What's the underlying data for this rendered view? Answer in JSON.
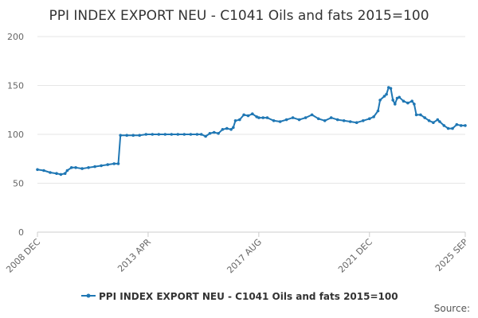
{
  "chart_data": {
    "type": "line",
    "title": "PPI INDEX EXPORT NEU - C1041 Oils and fats 2015=100",
    "xlabel": "",
    "ylabel": "",
    "ylim": [
      0,
      200
    ],
    "yticks": [
      0,
      50,
      100,
      150,
      200
    ],
    "xlim": [
      "2008-12",
      "2025-09"
    ],
    "xticks": [
      {
        "label": "2008 DEC",
        "x": "2008-12"
      },
      {
        "label": "2013 APR",
        "x": "2013-04"
      },
      {
        "label": "2017 AUG",
        "x": "2017-08"
      },
      {
        "label": "2021 DEC",
        "x": "2021-12"
      },
      {
        "label": "2025 SEP",
        "x": "2025-09"
      }
    ],
    "grid": "horizontal",
    "legend_position": "bottom",
    "colors": {
      "series": "#1f77b4",
      "grid": "#e6e6e6",
      "axis": "#cccccc",
      "text": "#666666"
    },
    "series": [
      {
        "name": "PPI INDEX EXPORT NEU - C1041 Oils and fats 2015=100",
        "points": [
          [
            "2008-12",
            64
          ],
          [
            "2009-03",
            63
          ],
          [
            "2009-06",
            61
          ],
          [
            "2009-09",
            60
          ],
          [
            "2009-11",
            59
          ],
          [
            "2010-01",
            60
          ],
          [
            "2010-02",
            63
          ],
          [
            "2010-04",
            66
          ],
          [
            "2010-06",
            66
          ],
          [
            "2010-09",
            65
          ],
          [
            "2010-12",
            66
          ],
          [
            "2011-03",
            67
          ],
          [
            "2011-06",
            68
          ],
          [
            "2011-09",
            69
          ],
          [
            "2011-12",
            70
          ],
          [
            "2012-02",
            70
          ],
          [
            "2012-03",
            99
          ],
          [
            "2012-06",
            99
          ],
          [
            "2012-09",
            99
          ],
          [
            "2012-12",
            99
          ],
          [
            "2013-03",
            100
          ],
          [
            "2013-06",
            100
          ],
          [
            "2013-09",
            100
          ],
          [
            "2013-12",
            100
          ],
          [
            "2014-03",
            100
          ],
          [
            "2014-06",
            100
          ],
          [
            "2014-09",
            100
          ],
          [
            "2014-12",
            100
          ],
          [
            "2015-03",
            100
          ],
          [
            "2015-05",
            100
          ],
          [
            "2015-07",
            98
          ],
          [
            "2015-09",
            101
          ],
          [
            "2015-11",
            102
          ],
          [
            "2016-01",
            101
          ],
          [
            "2016-03",
            105
          ],
          [
            "2016-05",
            106
          ],
          [
            "2016-07",
            105
          ],
          [
            "2016-08",
            107
          ],
          [
            "2016-09",
            114
          ],
          [
            "2016-11",
            115
          ],
          [
            "2017-01",
            120
          ],
          [
            "2017-03",
            119
          ],
          [
            "2017-05",
            121
          ],
          [
            "2017-07",
            118
          ],
          [
            "2017-08",
            117
          ],
          [
            "2017-10",
            117
          ],
          [
            "2017-12",
            117
          ],
          [
            "2018-03",
            114
          ],
          [
            "2018-06",
            113
          ],
          [
            "2018-09",
            115
          ],
          [
            "2018-12",
            117
          ],
          [
            "2019-03",
            115
          ],
          [
            "2019-06",
            117
          ],
          [
            "2019-09",
            120
          ],
          [
            "2019-12",
            116
          ],
          [
            "2020-03",
            114
          ],
          [
            "2020-06",
            117
          ],
          [
            "2020-09",
            115
          ],
          [
            "2020-12",
            114
          ],
          [
            "2021-03",
            113
          ],
          [
            "2021-06",
            112
          ],
          [
            "2021-09",
            114
          ],
          [
            "2021-12",
            116
          ],
          [
            "2022-02",
            118
          ],
          [
            "2022-04",
            124
          ],
          [
            "2022-05",
            135
          ],
          [
            "2022-07",
            139
          ],
          [
            "2022-08",
            141
          ],
          [
            "2022-09",
            148
          ],
          [
            "2022-10",
            147
          ],
          [
            "2022-11",
            135
          ],
          [
            "2022-12",
            131
          ],
          [
            "2023-01",
            137
          ],
          [
            "2023-02",
            138
          ],
          [
            "2023-04",
            134
          ],
          [
            "2023-06",
            132
          ],
          [
            "2023-08",
            134
          ],
          [
            "2023-09",
            131
          ],
          [
            "2023-10",
            120
          ],
          [
            "2023-12",
            120
          ],
          [
            "2024-02",
            117
          ],
          [
            "2024-04",
            114
          ],
          [
            "2024-06",
            112
          ],
          [
            "2024-08",
            115
          ],
          [
            "2024-09",
            113
          ],
          [
            "2024-11",
            109
          ],
          [
            "2025-01",
            106
          ],
          [
            "2025-03",
            106
          ],
          [
            "2025-05",
            110
          ],
          [
            "2025-07",
            109
          ],
          [
            "2025-09",
            109
          ]
        ]
      }
    ]
  },
  "source_label": "Source:"
}
